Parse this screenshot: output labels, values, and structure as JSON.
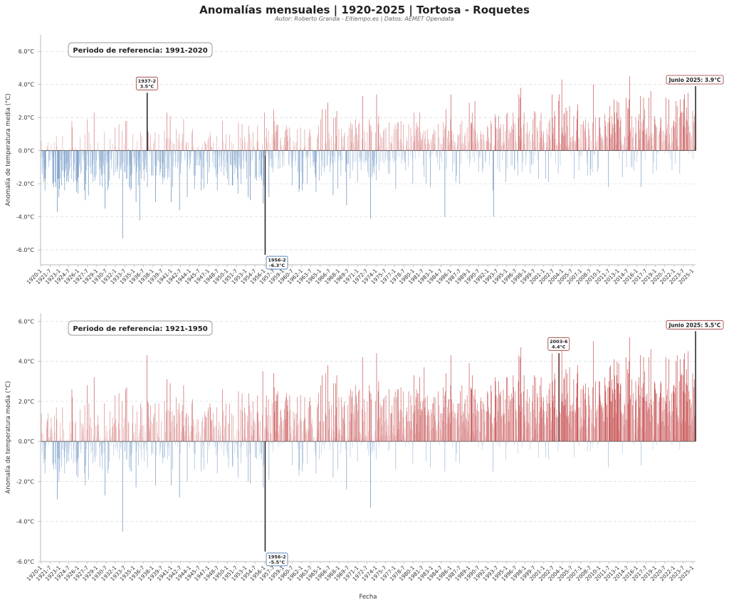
{
  "header": {
    "title": "Anomalías mensuales | 1920-2025 | Tortosa - Roquetes",
    "subtitle": "Autor: Roberto Granda - Eltiempo.es | Datos: AEMET Opendata"
  },
  "colors": {
    "positive": "#c0393b",
    "negative": "#3d73b0",
    "axis": "#bbbbbb",
    "grid": "#dddddd",
    "text": "#333333"
  },
  "x_tick_labels": [
    "1920-1",
    "1921-7",
    "1923-1",
    "1924-7",
    "1926-1",
    "1927-7",
    "1929-1",
    "1930-7",
    "1932-1",
    "1933-7",
    "1935-1",
    "1936-7",
    "1938-1",
    "1939-7",
    "1941-1",
    "1942-7",
    "1944-1",
    "1945-7",
    "1947-1",
    "1948-7",
    "1950-1",
    "1951-7",
    "1953-1",
    "1954-7",
    "1956-1",
    "1957-7",
    "1959-1",
    "1960-7",
    "1962-1",
    "1963-7",
    "1965-1",
    "1966-7",
    "1968-1",
    "1969-7",
    "1971-1",
    "1972-7",
    "1974-1",
    "1975-7",
    "1977-1",
    "1978-7",
    "1980-1",
    "1981-7",
    "1983-1",
    "1984-7",
    "1986-1",
    "1987-7",
    "1989-1",
    "1990-7",
    "1992-1",
    "1993-7",
    "1995-1",
    "1996-7",
    "1998-1",
    "1999-7",
    "2001-1",
    "2002-7",
    "2004-1",
    "2005-7",
    "2007-1",
    "2008-7",
    "2010-1",
    "2011-7",
    "2013-1",
    "2014-7",
    "2016-1",
    "2017-7",
    "2019-1",
    "2020-7",
    "2022-1",
    "2023-7",
    "2025-1"
  ],
  "chart_data": [
    {
      "type": "bar",
      "ref_label": "Periodo de referencia: 1991-2020",
      "ylabel": "Anomalía de temperatura media (°C)",
      "xlabel": "",
      "ylim": [
        -6.9,
        7.0
      ],
      "yticks": [
        -6,
        -4,
        -2,
        0,
        2,
        4,
        6
      ],
      "ytick_labels": [
        "-6.0°C",
        "-4.0°C",
        "-2.0°C",
        "0.0°C",
        "2.0°C",
        "4.0°C",
        "6.0°C"
      ],
      "x_start": "1920-1",
      "x_end": "2025-6",
      "grid": "horizontal dashed",
      "baseline": -0.9,
      "trend_per_decade": 0.2,
      "spread": 1.5,
      "seed": 11,
      "notable_values": [
        {
          "date": "1933-3",
          "value": -5.3
        },
        {
          "date": "1935-12",
          "value": -4.2
        },
        {
          "date": "1956-1",
          "value": 2.3
        },
        {
          "date": "1973-2",
          "value": -4.1
        },
        {
          "date": "1985-2",
          "value": -4.0
        },
        {
          "date": "1989-12",
          "value": 3.0
        },
        {
          "date": "1992-12",
          "value": -4.0
        },
        {
          "date": "2003-6",
          "value": 3.0
        },
        {
          "date": "2022-7",
          "value": 2.7
        }
      ],
      "annotations": [
        {
          "date": "1937-2",
          "value": 3.5,
          "label_line1": "1937-2",
          "label_line2": "3.5°C",
          "position": "above"
        },
        {
          "date": "1956-2",
          "value": -6.3,
          "label_line1": "1956-2",
          "label_line2": "-6.3°C",
          "position": "below"
        },
        {
          "date": "2025-6",
          "value": 3.9,
          "label": "Junio 2025: 3.9°C",
          "position": "above-left"
        }
      ]
    },
    {
      "type": "bar",
      "ref_label": "Periodo de referencia: 1921-1950",
      "ylabel": "Anomalía de temperatura media (°C)",
      "xlabel": "Fecha",
      "ylim": [
        -6.0,
        6.4
      ],
      "yticks": [
        -6,
        -4,
        -2,
        0,
        2,
        4,
        6
      ],
      "ytick_labels": [
        "-6.0°C",
        "-4.0°C",
        "-2.0°C",
        "0.0°C",
        "2.0°C",
        "4.0°C",
        "6.0°C"
      ],
      "x_start": "1920-1",
      "x_end": "2025-6",
      "grid": "horizontal dashed",
      "baseline": -0.1,
      "trend_per_decade": 0.22,
      "spread": 1.5,
      "seed": 11,
      "notable_values": [
        {
          "date": "1933-3",
          "value": -4.5
        },
        {
          "date": "1937-2",
          "value": 4.3
        },
        {
          "date": "1955-10",
          "value": 3.5
        },
        {
          "date": "1973-2",
          "value": -3.3
        },
        {
          "date": "1981-10",
          "value": 3.7
        },
        {
          "date": "2011-10",
          "value": 3.8
        },
        {
          "date": "2022-7",
          "value": 4.3
        }
      ],
      "annotations": [
        {
          "date": "2003-6",
          "value": 4.4,
          "label_line1": "2003-6",
          "label_line2": "4.4°C",
          "position": "above"
        },
        {
          "date": "1956-2",
          "value": -5.5,
          "label_line1": "1956-2",
          "label_line2": "-5.5°C",
          "position": "below"
        },
        {
          "date": "2025-6",
          "value": 5.5,
          "label": "Junio 2025: 5.5°C",
          "position": "above-left"
        }
      ]
    }
  ]
}
